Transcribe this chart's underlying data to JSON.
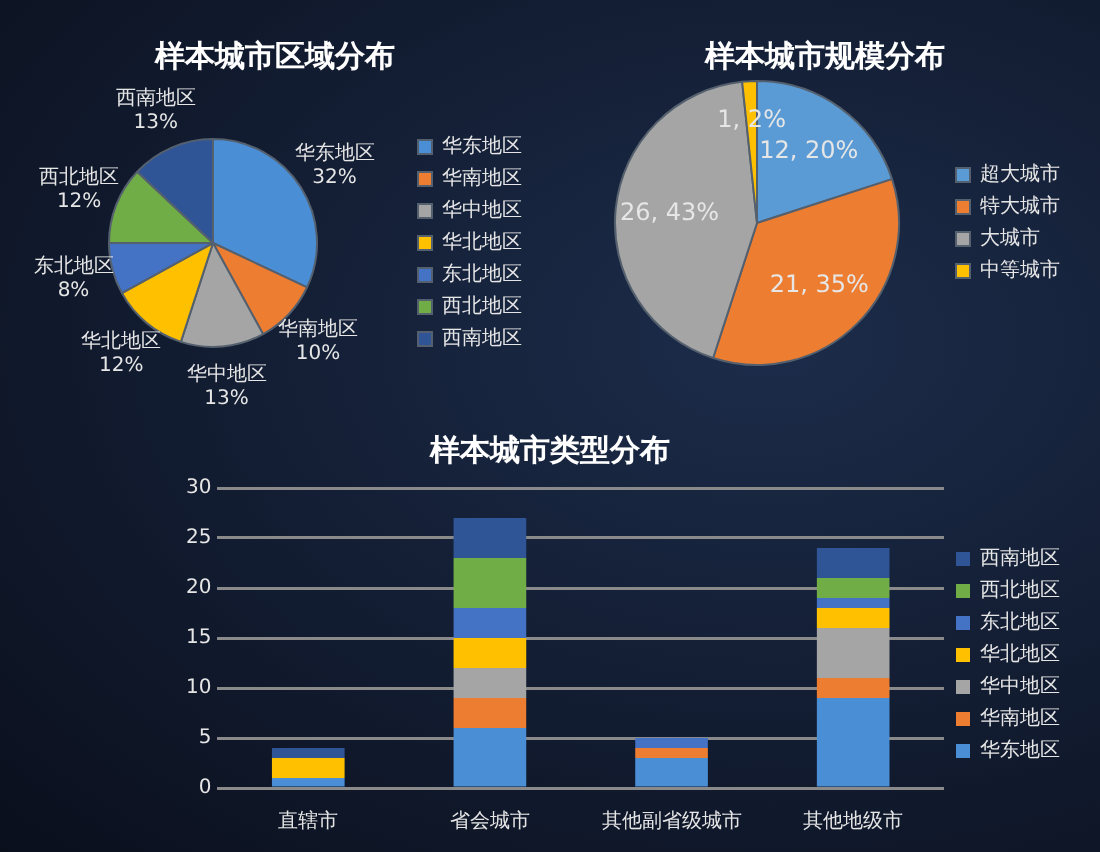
{
  "chart_data": [
    {
      "type": "pie",
      "title": "样本城市区域分布",
      "categories": [
        "华东地区",
        "华南地区",
        "华中地区",
        "华北地区",
        "东北地区",
        "西北地区",
        "西南地区"
      ],
      "values": [
        32,
        10,
        13,
        12,
        8,
        12,
        13
      ],
      "value_labels": [
        "32%",
        "10%",
        "13%",
        "12%",
        "8%",
        "12%",
        "13%"
      ],
      "colors": [
        "#4a8fd6",
        "#ed7d31",
        "#a5a5a5",
        "#ffc000",
        "#4472c4",
        "#70ad47",
        "#2f5597"
      ],
      "legend": "right"
    },
    {
      "type": "pie",
      "title": "样本城市规模分布",
      "categories": [
        "超大城市",
        "特大城市",
        "大城市",
        "中等城市"
      ],
      "values": [
        12,
        21,
        26,
        1
      ],
      "value_labels": [
        "12, 20%",
        "21, 35%",
        "26, 43%",
        "1, 2%"
      ],
      "colors": [
        "#5b9bd5",
        "#ed7d31",
        "#a5a5a5",
        "#ffc000"
      ],
      "legend": "right"
    },
    {
      "type": "bar",
      "title": "样本城市类型分布",
      "stacked": true,
      "categories": [
        "直辖市",
        "省会城市",
        "其他副省级城市",
        "其他地级市"
      ],
      "ylim": [
        0,
        30
      ],
      "yticks": [
        0,
        5,
        10,
        15,
        20,
        25,
        30
      ],
      "grid": "y",
      "legend": "right",
      "series": [
        {
          "name": "华东地区",
          "color": "#4a8fd6",
          "values": [
            1,
            6,
            3,
            9
          ]
        },
        {
          "name": "华南地区",
          "color": "#ed7d31",
          "values": [
            0,
            3,
            1,
            2
          ]
        },
        {
          "name": "华中地区",
          "color": "#a5a5a5",
          "values": [
            0,
            3,
            0,
            5
          ]
        },
        {
          "name": "华北地区",
          "color": "#ffc000",
          "values": [
            2,
            3,
            0,
            2
          ]
        },
        {
          "name": "东北地区",
          "color": "#4472c4",
          "values": [
            0,
            3,
            1,
            1
          ]
        },
        {
          "name": "西北地区",
          "color": "#70ad47",
          "values": [
            0,
            5,
            0,
            2
          ]
        },
        {
          "name": "西南地区",
          "color": "#2f5597",
          "values": [
            1,
            4,
            0,
            3
          ]
        }
      ]
    }
  ]
}
